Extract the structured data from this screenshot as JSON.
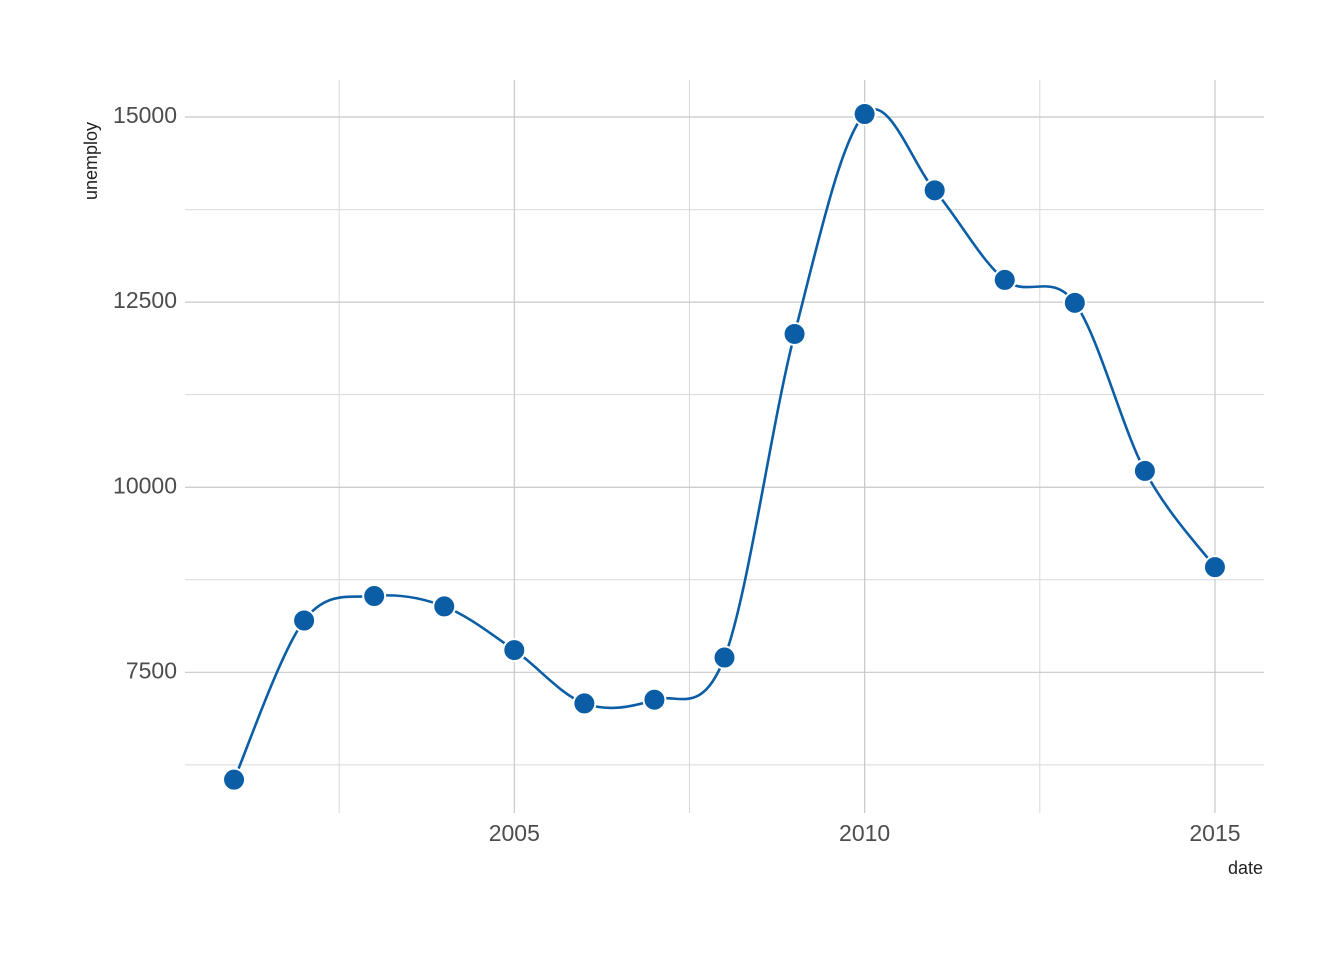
{
  "chart_data": {
    "type": "line",
    "x_label": "date",
    "y_label": "unemploy",
    "x": [
      2001,
      2002,
      2003,
      2004,
      2005,
      2006,
      2007,
      2008,
      2009,
      2010,
      2011,
      2012,
      2013,
      2014,
      2015
    ],
    "series": [
      {
        "name": "unemploy",
        "color": "#0b5ea6",
        "values": [
          6050,
          8200,
          8530,
          8390,
          7800,
          7080,
          7130,
          7700,
          12070,
          15040,
          14010,
          12800,
          12490,
          10220,
          8920
        ]
      }
    ],
    "xlim": [
      2000.3,
      2015.7
    ],
    "xticks": [
      2005,
      2010,
      2015
    ],
    "xminor": [
      2002.5,
      2007.5,
      2012.5
    ],
    "ylim": [
      5600,
      15500
    ],
    "yticks": [
      7500,
      10000,
      12500,
      15000
    ],
    "yminor": [
      6250,
      8750,
      11250,
      13750
    ],
    "grid": true,
    "smooth": true
  }
}
